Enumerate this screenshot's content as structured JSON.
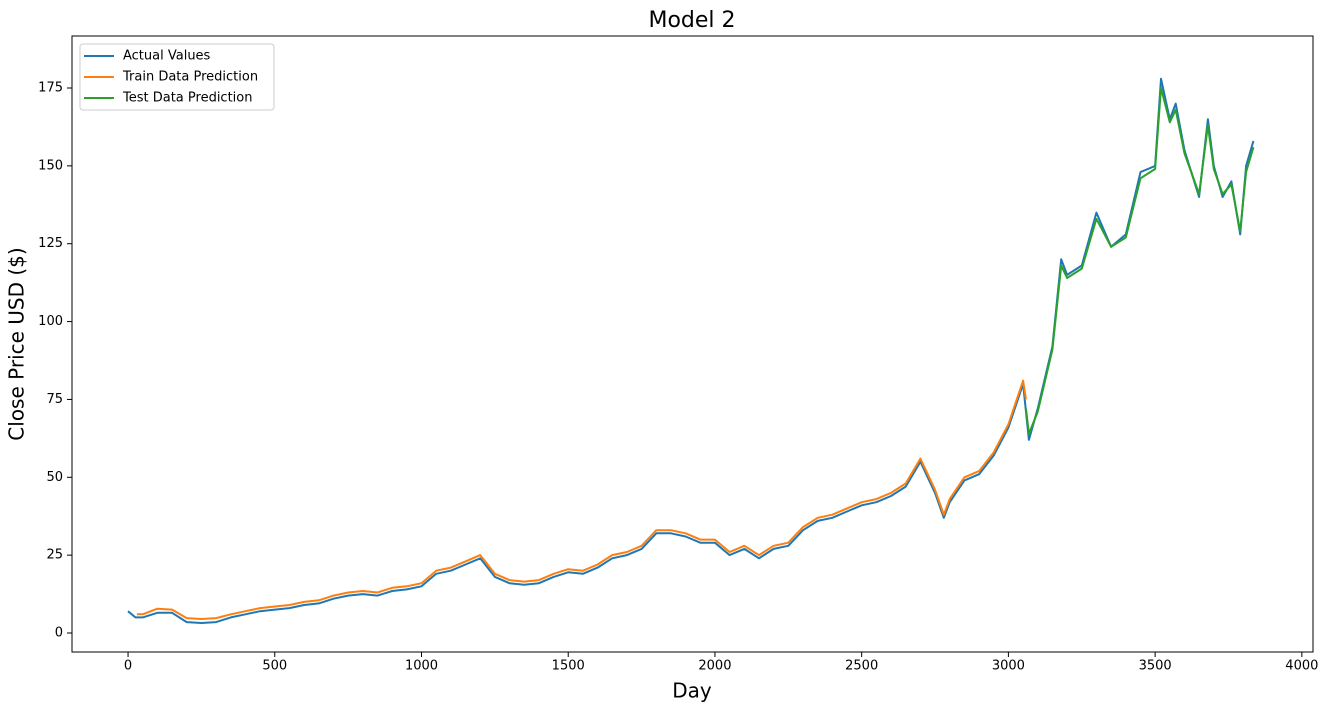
{
  "chart_data": {
    "type": "line",
    "title": "Model 2",
    "x_label": "Day",
    "y_label": "Close Price USD ($)",
    "xlim": [
      -191,
      4038
    ],
    "ylim": [
      -6.1,
      191.7
    ],
    "xticks": [
      0,
      500,
      1000,
      1500,
      2000,
      2500,
      3000,
      3500,
      4000
    ],
    "yticks": [
      0,
      25,
      50,
      75,
      100,
      125,
      150,
      175
    ],
    "legend": "upper-left",
    "series": [
      {
        "name": "Actual Values",
        "color": "#1f77b4",
        "x": [
          0,
          25,
          50,
          100,
          150,
          200,
          250,
          300,
          350,
          400,
          450,
          500,
          550,
          600,
          650,
          700,
          750,
          800,
          850,
          900,
          950,
          1000,
          1050,
          1100,
          1150,
          1200,
          1250,
          1300,
          1350,
          1400,
          1450,
          1500,
          1550,
          1600,
          1650,
          1700,
          1750,
          1800,
          1850,
          1900,
          1950,
          2000,
          2050,
          2100,
          2150,
          2200,
          2250,
          2300,
          2350,
          2400,
          2450,
          2500,
          2550,
          2600,
          2650,
          2700,
          2750,
          2780,
          2800,
          2850,
          2900,
          2950,
          3000,
          3050,
          3070,
          3100,
          3150,
          3180,
          3200,
          3250,
          3300,
          3350,
          3400,
          3450,
          3500,
          3520,
          3550,
          3570,
          3600,
          3650,
          3680,
          3700,
          3730,
          3760,
          3790,
          3810,
          3835
        ],
        "values": [
          7,
          5,
          5,
          6.5,
          6.5,
          3.5,
          3.2,
          3.5,
          5,
          6,
          7,
          7.5,
          8,
          9,
          9.5,
          11,
          12,
          12.5,
          12,
          13.5,
          14,
          15,
          19,
          20,
          22,
          24,
          18,
          16,
          15.5,
          16,
          18,
          19.5,
          19,
          21,
          24,
          25,
          27,
          32,
          32,
          31,
          29,
          29,
          25,
          27,
          24,
          27,
          28,
          33,
          36,
          37,
          39,
          41,
          42,
          44,
          47,
          55,
          45,
          37,
          42,
          49,
          51,
          57,
          66,
          80,
          62,
          72,
          92,
          120,
          115,
          118,
          135,
          124,
          128,
          148,
          150,
          178,
          165,
          170,
          155,
          140,
          165,
          150,
          140,
          145,
          128,
          150,
          158
        ]
      },
      {
        "name": "Train Data Prediction",
        "color": "#ff7f0e",
        "x": [
          30,
          50,
          100,
          150,
          200,
          250,
          300,
          350,
          400,
          450,
          500,
          550,
          600,
          650,
          700,
          750,
          800,
          850,
          900,
          950,
          1000,
          1050,
          1100,
          1150,
          1200,
          1250,
          1300,
          1350,
          1400,
          1450,
          1500,
          1550,
          1600,
          1650,
          1700,
          1750,
          1800,
          1850,
          1900,
          1950,
          2000,
          2050,
          2100,
          2150,
          2200,
          2250,
          2300,
          2350,
          2400,
          2450,
          2500,
          2550,
          2600,
          2650,
          2700,
          2750,
          2780,
          2800,
          2850,
          2900,
          2950,
          3000,
          3050,
          3060
        ],
        "values": [
          6,
          6,
          7.8,
          7.5,
          4.8,
          4.5,
          4.8,
          6,
          7,
          8,
          8.5,
          9,
          10,
          10.5,
          12,
          13,
          13.5,
          13,
          14.5,
          15,
          16,
          20,
          21,
          23,
          25,
          19,
          17,
          16.5,
          17,
          19,
          20.5,
          20,
          22,
          25,
          26,
          28,
          33,
          33,
          32,
          30,
          30,
          26,
          28,
          25,
          28,
          29,
          34,
          37,
          38,
          40,
          42,
          43,
          45,
          48,
          56,
          46,
          38,
          43,
          50,
          52,
          58,
          67,
          81,
          75
        ]
      },
      {
        "name": "Test Data Prediction",
        "color": "#2ca02c",
        "x": [
          3060,
          3070,
          3100,
          3150,
          3180,
          3200,
          3250,
          3300,
          3350,
          3400,
          3450,
          3500,
          3520,
          3550,
          3570,
          3600,
          3650,
          3680,
          3700,
          3730,
          3760,
          3790,
          3810,
          3835
        ],
        "values": [
          72,
          64,
          71,
          91,
          118,
          114,
          117,
          133,
          124,
          127,
          146,
          149,
          175,
          164,
          168,
          154,
          141,
          163,
          149,
          141,
          144,
          129,
          148,
          156
        ]
      }
    ]
  }
}
